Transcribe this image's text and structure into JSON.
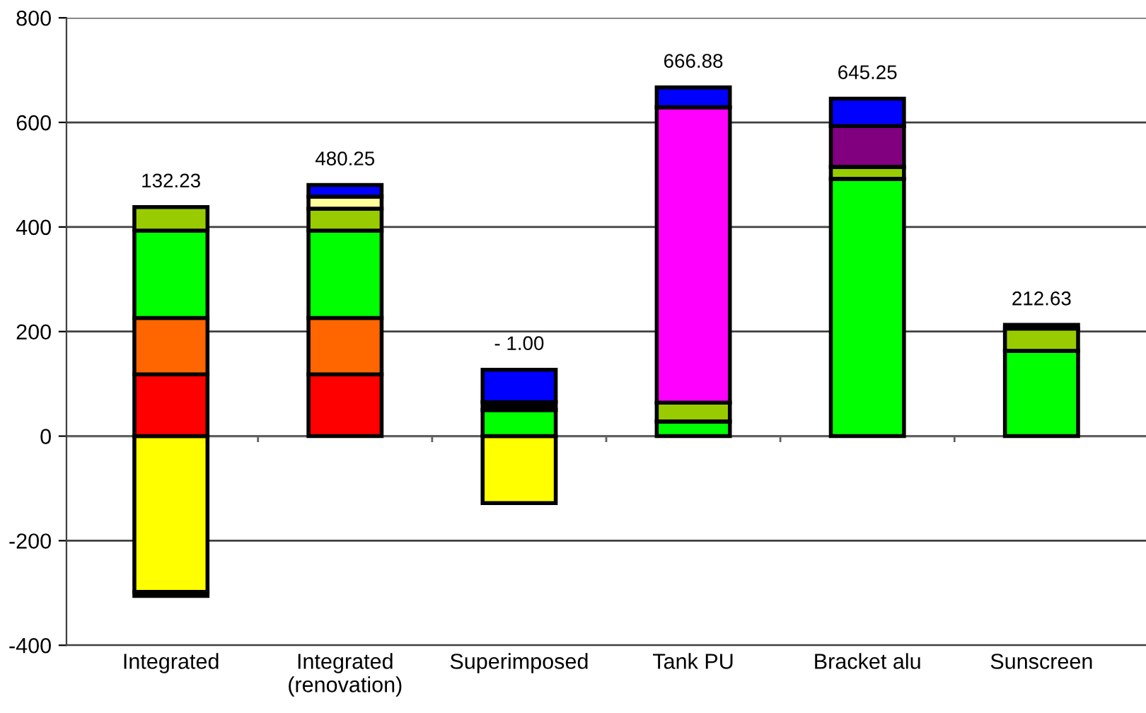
{
  "chart_data": {
    "type": "bar",
    "stacked": true,
    "categories": [
      "Integrated",
      "Integrated\n(renovation)",
      "Superimposed",
      "Tank PU",
      "Bracket alu",
      "Sunscreen"
    ],
    "series": [
      {
        "color": "#ffff00",
        "values": [
          -297.77,
          null,
          -128,
          null,
          null,
          null
        ]
      },
      {
        "color": "#ff0000",
        "values": [
          118,
          118,
          null,
          null,
          null,
          null
        ]
      },
      {
        "color": "#ff6600",
        "values": [
          108,
          108,
          null,
          null,
          null,
          null
        ]
      },
      {
        "color": "#00ff00",
        "values": [
          167,
          167,
          50,
          28,
          492,
          163
        ]
      },
      {
        "color": "#99cc00",
        "values": [
          45,
          42,
          null,
          36,
          23,
          42.63
        ]
      },
      {
        "color": "#ffff99",
        "values": [
          null,
          23,
          null,
          null,
          null,
          null
        ]
      },
      {
        "color": "#ff00ff",
        "values": [
          null,
          null,
          null,
          565,
          null,
          null
        ]
      },
      {
        "color": "#800080",
        "values": [
          null,
          null,
          null,
          null,
          78,
          null
        ]
      },
      {
        "color": "#000000",
        "values": [
          -8,
          null,
          15,
          null,
          null,
          7
        ]
      },
      {
        "color": "#0000ff",
        "values": [
          null,
          22.25,
          62,
          37.88,
          52.25,
          null
        ]
      }
    ],
    "totals": [
      "132.23",
      "480.25",
      "- 1.00",
      "666.88",
      "645.25",
      "212.63"
    ],
    "ylim": [
      -400,
      800
    ],
    "yticks": [
      -400,
      -200,
      0,
      200,
      400,
      600,
      800
    ],
    "grid": "y",
    "legend": false
  }
}
